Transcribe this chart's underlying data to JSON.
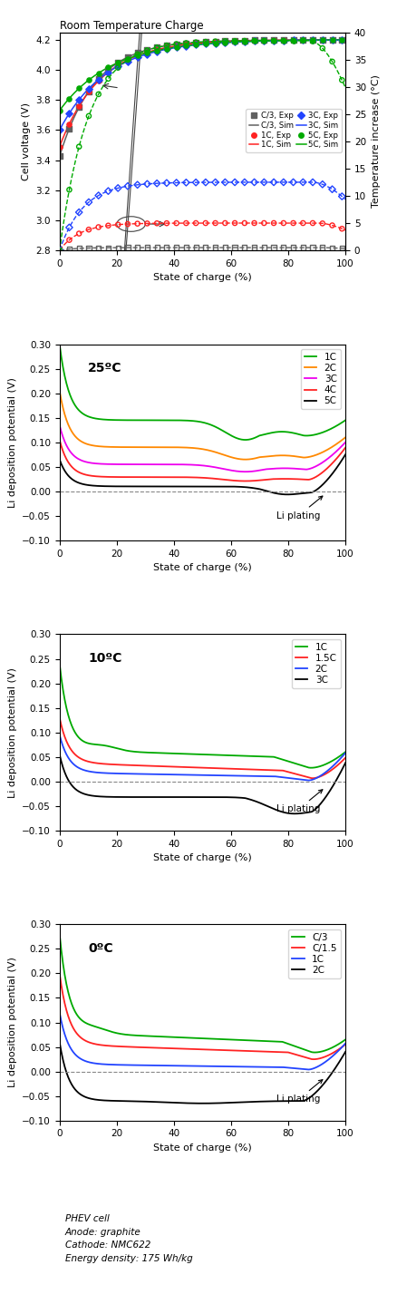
{
  "title": "Room Temperature Charge",
  "panel1_ylabel": "Cell voltage (V)",
  "panel1_ylabel2": "Temperature increase (°C)",
  "panel1_xlabel": "State of charge (%)",
  "panel2_title": "25ºC",
  "panel2_ylabel": "Li deposition potential (V)",
  "panel2_xlabel": "State of charge (%)",
  "panel3_title": "10ºC",
  "panel3_ylabel": "Li deposition potential (V)",
  "panel3_xlabel": "State of charge (%)",
  "panel4_title": "0ºC",
  "panel4_ylabel": "Li deposition potential (V)",
  "panel4_xlabel": "State of charge (%)",
  "footer_lines": [
    "PHEV cell",
    "Anode: graphite",
    "Cathode: NMC622",
    "Energy density: 175 Wh/kg"
  ],
  "col_gray": "#606060",
  "col_red": "#ff2222",
  "col_blue": "#2244ff",
  "col_green": "#00aa00",
  "col_orange": "#ff8800",
  "col_magenta": "#ee00ee",
  "col_black": "#000000"
}
